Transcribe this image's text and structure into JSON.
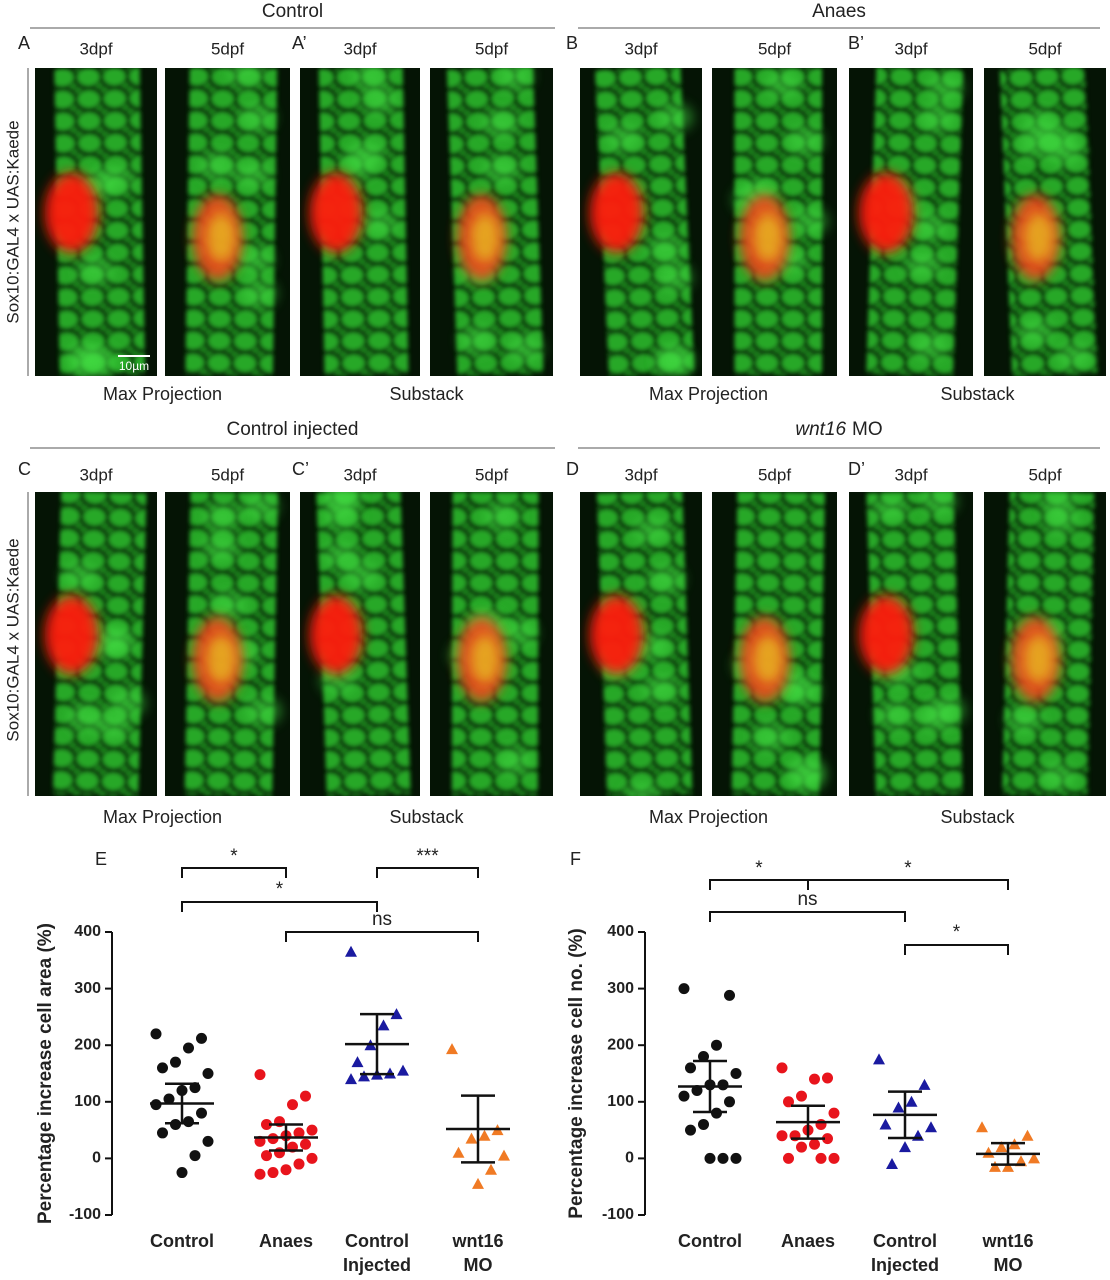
{
  "figure": {
    "rows": [
      {
        "side_label": "Sox10:GAL4 x UAS:Kaede",
        "scale_bar": "10µm",
        "groups": [
          {
            "title": "Control",
            "panels": [
              {
                "letter": "A",
                "stages": [
                  "3dpf",
                  "5dpf"
                ],
                "caption": "Max Projection"
              },
              {
                "letter": "A’",
                "stages": [
                  "3dpf",
                  "5dpf"
                ],
                "caption": "Substack"
              }
            ]
          },
          {
            "title": "Anaes",
            "panels": [
              {
                "letter": "B",
                "stages": [
                  "3dpf",
                  "5dpf"
                ],
                "caption": "Max Projection"
              },
              {
                "letter": "B’",
                "stages": [
                  "3dpf",
                  "5dpf"
                ],
                "caption": "Substack"
              }
            ]
          }
        ]
      },
      {
        "side_label": "Sox10:GAL4 x UAS:Kaede",
        "groups": [
          {
            "title": "Control injected",
            "panels": [
              {
                "letter": "C",
                "stages": [
                  "3dpf",
                  "5dpf"
                ],
                "caption": "Max Projection"
              },
              {
                "letter": "C’",
                "stages": [
                  "3dpf",
                  "5dpf"
                ],
                "caption": "Substack"
              }
            ]
          },
          {
            "title_italic": "wnt16",
            "title": "MO",
            "panels": [
              {
                "letter": "D",
                "stages": [
                  "3dpf",
                  "5dpf"
                ],
                "caption": "Max Projection"
              },
              {
                "letter": "D’",
                "stages": [
                  "3dpf",
                  "5dpf"
                ],
                "caption": "Substack"
              }
            ]
          }
        ]
      }
    ]
  },
  "chart_data": [
    {
      "type": "scatter",
      "label": "E",
      "ylabel": "Percentage increase cell area (%)",
      "ylim": [
        -100,
        400
      ],
      "yticks": [
        -100,
        0,
        100,
        200,
        300,
        400
      ],
      "categories": [
        [
          "Control"
        ],
        [
          "Anaes"
        ],
        [
          "Control",
          "Injected"
        ],
        [
          "wnt16",
          "MO"
        ]
      ],
      "groups": [
        {
          "color": "#111111",
          "marker": "circle",
          "values": [
            220,
            212,
            195,
            170,
            160,
            150,
            125,
            120,
            105,
            95,
            80,
            65,
            60,
            45,
            30,
            5,
            -25
          ],
          "mean": 97,
          "error": 35
        },
        {
          "color": "#e8141c",
          "marker": "circle",
          "values": [
            148,
            110,
            95,
            65,
            60,
            50,
            45,
            40,
            35,
            30,
            25,
            20,
            10,
            5,
            0,
            -10,
            -20,
            -25,
            -28
          ],
          "mean": 37,
          "error": 23
        },
        {
          "color": "#1a1aa0",
          "marker": "triangle",
          "values": [
            365,
            255,
            235,
            200,
            170,
            155,
            150,
            148,
            145,
            140
          ],
          "mean": 202,
          "error": 53
        },
        {
          "color": "#f07a24",
          "marker": "triangle",
          "values": [
            193,
            50,
            40,
            35,
            10,
            5,
            -20,
            -45
          ],
          "mean": 52,
          "error": 59
        }
      ],
      "comparisons": [
        {
          "groups": [
            0,
            1
          ],
          "label": "*"
        },
        {
          "groups": [
            0,
            2
          ],
          "label": "*"
        },
        {
          "groups": [
            1,
            3
          ],
          "label": "ns"
        },
        {
          "groups": [
            2,
            3
          ],
          "label": "***"
        }
      ]
    },
    {
      "type": "scatter",
      "label": "F",
      "ylabel": "Percentage increase cell no. (%)",
      "ylim": [
        -100,
        400
      ],
      "yticks": [
        -100,
        0,
        100,
        200,
        300,
        400
      ],
      "categories": [
        [
          "Control"
        ],
        [
          "Anaes"
        ],
        [
          "Control",
          "Injected"
        ],
        [
          "wnt16",
          "MO"
        ]
      ],
      "groups": [
        {
          "color": "#111111",
          "marker": "circle",
          "values": [
            300,
            288,
            200,
            180,
            160,
            150,
            130,
            130,
            120,
            110,
            100,
            80,
            60,
            50,
            0,
            0,
            0
          ],
          "mean": 127,
          "error": 45
        },
        {
          "color": "#e8141c",
          "marker": "circle",
          "values": [
            160,
            142,
            140,
            110,
            100,
            80,
            60,
            50,
            40,
            40,
            35,
            25,
            20,
            0,
            0,
            0
          ],
          "mean": 64,
          "error": 29
        },
        {
          "color": "#1a1aa0",
          "marker": "triangle",
          "values": [
            175,
            130,
            100,
            90,
            60,
            55,
            40,
            20,
            -10
          ],
          "mean": 77,
          "error": 41
        },
        {
          "color": "#f07a24",
          "marker": "triangle",
          "values": [
            55,
            40,
            25,
            20,
            10,
            0,
            -5,
            -15,
            -15
          ],
          "mean": 8,
          "error": 19
        }
      ],
      "comparisons": [
        {
          "groups": [
            0,
            1
          ],
          "label": "*"
        },
        {
          "groups": [
            0,
            2
          ],
          "label": "ns"
        },
        {
          "groups": [
            2,
            3
          ],
          "label": "*"
        },
        {
          "groups": [
            1,
            3
          ],
          "label": "*"
        }
      ]
    }
  ]
}
